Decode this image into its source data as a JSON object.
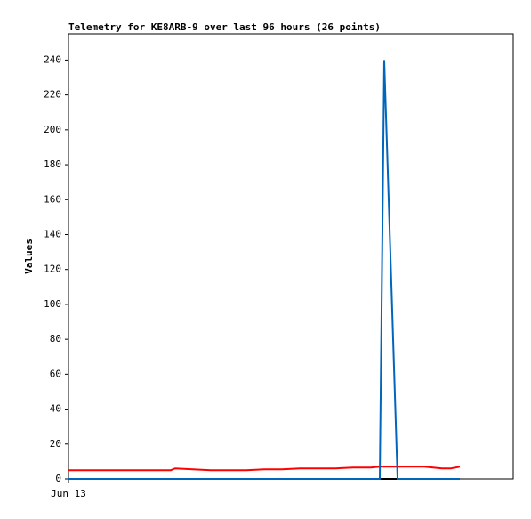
{
  "chart_data": {
    "type": "line",
    "title": "Telemetry for KE8ARB-9 over last 96 hours (26 points)",
    "y_label": "Values",
    "x": [
      0,
      8,
      16,
      23,
      24,
      32,
      36,
      40,
      44,
      48,
      52,
      56,
      60,
      64,
      66,
      68,
      70,
      71,
      74,
      76,
      78,
      80,
      82,
      84,
      86,
      88
    ],
    "xlim": [
      0,
      100
    ],
    "xticks": [
      {
        "value": 0,
        "label": "Jun 13"
      }
    ],
    "ylim": [
      0,
      255
    ],
    "yticks": [
      0,
      20,
      40,
      60,
      80,
      100,
      120,
      140,
      160,
      180,
      200,
      220,
      240
    ],
    "series": [
      {
        "color": "#000000",
        "values": [
          0,
          0,
          0,
          0,
          0,
          0,
          0,
          0,
          0,
          0,
          0,
          0,
          0,
          0,
          0,
          0,
          0,
          0,
          0,
          0,
          0,
          0,
          0,
          0,
          0,
          0
        ]
      },
      {
        "color": "#ff0000",
        "values": [
          5,
          5,
          5,
          5,
          6,
          5,
          5,
          5,
          5.5,
          5.5,
          6,
          6,
          6,
          6.5,
          6.5,
          6.5,
          7,
          7,
          7,
          7,
          7,
          7,
          6.5,
          6,
          6,
          7
        ]
      },
      {
        "color": "#0066bb",
        "values": [
          0,
          0,
          0,
          0,
          0,
          0,
          0,
          0,
          0,
          0,
          0,
          0,
          0,
          0,
          0,
          0,
          0,
          240,
          0,
          0,
          0,
          0,
          0,
          0,
          0,
          0
        ]
      }
    ]
  }
}
